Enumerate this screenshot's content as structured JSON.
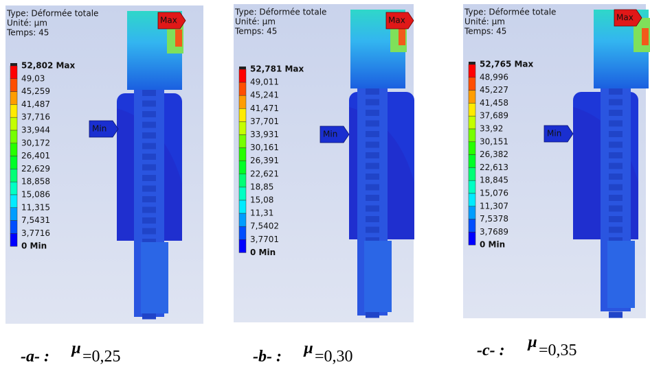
{
  "panels": [
    {
      "info": [
        "Type: Déformée totale",
        "Unité: µm",
        "Temps: 45"
      ],
      "legend": [
        "52,802 Max",
        "49,03",
        "45,259",
        "41,487",
        "37,716",
        "33,944",
        "30,172",
        "26,401",
        "22,629",
        "18,858",
        "15,086",
        "11,315",
        "7,5431",
        "3,7716",
        "0 Min"
      ],
      "max_tag": "Max",
      "min_tag": "Min",
      "caption": {
        "label": "-a- :",
        "symbol": "µ",
        "value": "=0,25"
      }
    },
    {
      "info": [
        "Type: Déformée totale",
        "Unité: µm",
        "Temps: 45"
      ],
      "legend": [
        "52,781 Max",
        "49,011",
        "45,241",
        "41,471",
        "37,701",
        "33,931",
        "30,161",
        "26,391",
        "22,621",
        "18,85",
        "15,08",
        "11,31",
        "7,5402",
        "3,7701",
        "0 Min"
      ],
      "max_tag": "Max",
      "min_tag": "Min",
      "caption": {
        "label": "-b- :",
        "symbol": "µ",
        "value": "=0,30"
      }
    },
    {
      "info": [
        "Type: Déformée totale",
        "Unité: µm",
        "Temps: 45"
      ],
      "legend": [
        "52,765 Max",
        "48,996",
        "45,227",
        "41,458",
        "37,689",
        "33,92",
        "30,151",
        "26,382",
        "22,613",
        "18,845",
        "15,076",
        "11,307",
        "7,5378",
        "3,7689",
        "0 Min"
      ],
      "max_tag": "Max",
      "min_tag": "Min",
      "caption": {
        "label": "-c- :",
        "symbol": "µ",
        "value": "=0,35"
      }
    }
  ]
}
